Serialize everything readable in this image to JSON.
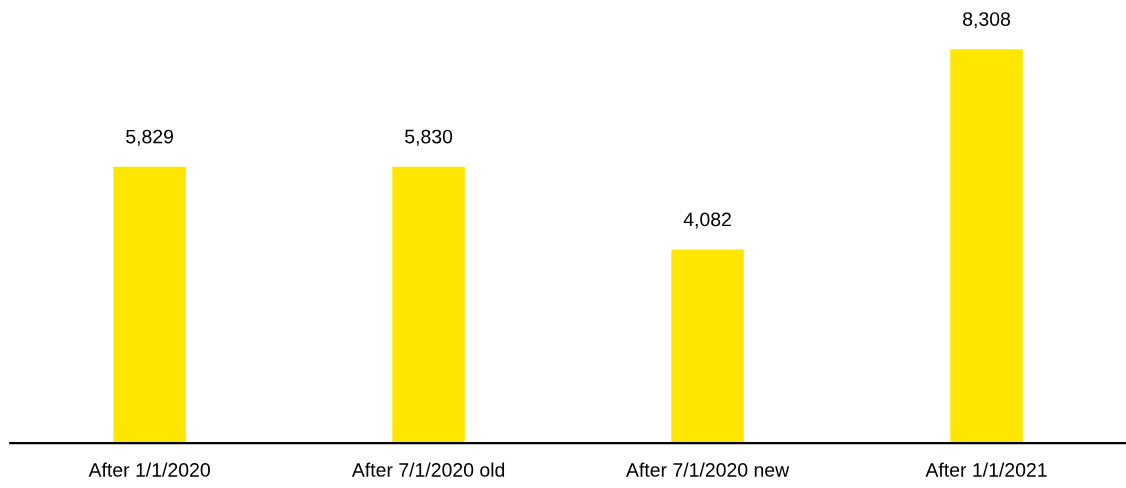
{
  "chart_data": {
    "type": "bar",
    "categories": [
      "After 1/1/2020",
      "After 7/1/2020 old",
      "After 7/1/2020 new",
      "After 1/1/2021"
    ],
    "values": [
      5829,
      5830,
      4082,
      8308
    ],
    "color": "#ffe600",
    "data_labels": true,
    "value_labels": [
      "5,829",
      "5,830",
      "4,082",
      "8,308"
    ]
  }
}
